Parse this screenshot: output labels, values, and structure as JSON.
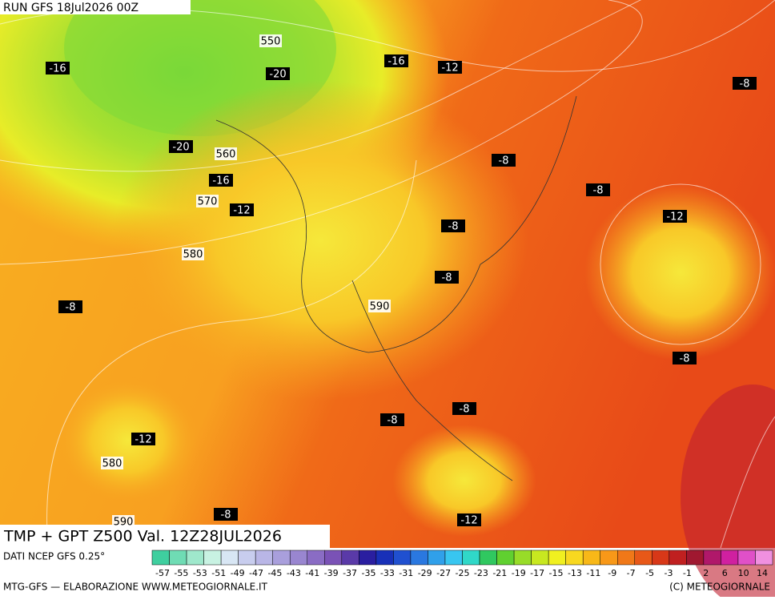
{
  "header": {
    "run": "RUN GFS 18Jul2026 00Z"
  },
  "map": {
    "title": "TMP + GPT Z500 Val. 12Z28JUL2026",
    "temperature_labels": [
      "-16",
      "-16",
      "-12",
      "-20",
      "-8",
      "-20",
      "-8",
      "-16",
      "-8",
      "-12",
      "-12",
      "-8",
      "-8",
      "-8",
      "-8",
      "-8",
      "-8",
      "-12",
      "-12",
      "-8"
    ],
    "height_labels": [
      "550",
      "560",
      "570",
      "580",
      "590",
      "580",
      "590"
    ]
  },
  "legend": {
    "source": "DATI NCEP GFS 0.25°",
    "colors": [
      "#3fcf9f",
      "#6fdcb4",
      "#9fe8cc",
      "#c8f2e2",
      "#d8e6f4",
      "#c8cdee",
      "#b9b6e6",
      "#a99fdc",
      "#9986d0",
      "#8a6cc4",
      "#7a52b6",
      "#5a3aa8",
      "#2a1ea0",
      "#1830b8",
      "#2050d0",
      "#2a78e0",
      "#30a0ea",
      "#38c6f0",
      "#30d8c8",
      "#30c860",
      "#60d030",
      "#98dc28",
      "#c8e820",
      "#f0f020",
      "#f8d820",
      "#f8b818",
      "#f89818",
      "#f07818",
      "#e85818",
      "#d83818",
      "#c02020",
      "#a01830",
      "#b0186a",
      "#d020a0",
      "#e050c8",
      "#f090e0"
    ],
    "scale_labels": [
      "-57",
      "-55",
      "-53",
      "-51",
      "-49",
      "-47",
      "-45",
      "-43",
      "-41",
      "-39",
      "-37",
      "-35",
      "-33",
      "-31",
      "-29",
      "-27",
      "-25",
      "-23",
      "-21",
      "-19",
      "-17",
      "-15",
      "-13",
      "-11",
      "-9",
      "-7",
      "-5",
      "-3",
      "-1",
      "2",
      "6",
      "10",
      "14"
    ]
  },
  "footer": {
    "left": "MTG-GFS — ELABORAZIONE WWW.METEOGIORNALE.IT",
    "right": "(C) METEOGIORNALE"
  }
}
